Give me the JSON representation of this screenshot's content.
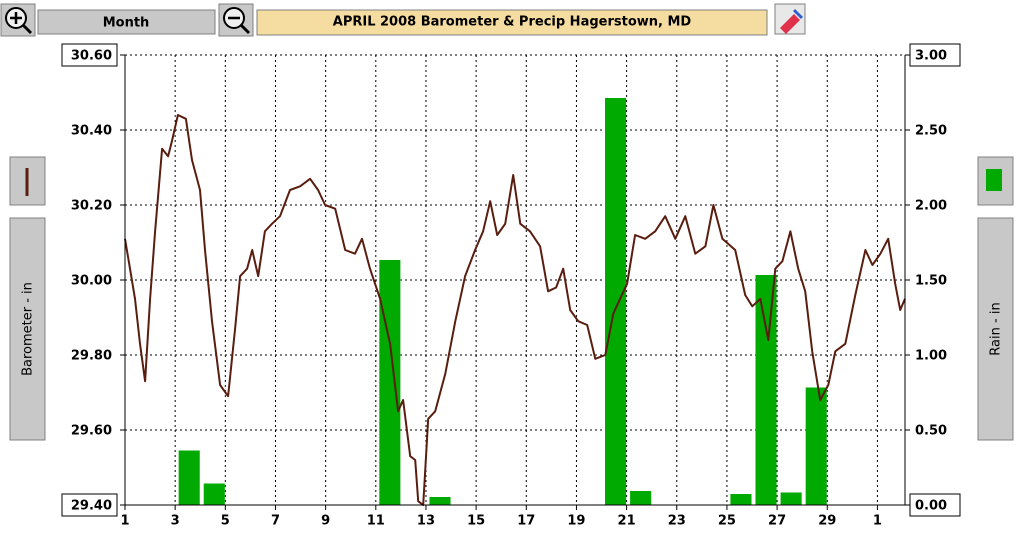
{
  "toolbar": {
    "view_button": "Month"
  },
  "chart_data": {
    "type": "combo",
    "title": "APRIL 2008    Barometer & Precip    Hagerstown, MD",
    "xlim": [
      1,
      32.1
    ],
    "xticks": [
      1,
      3,
      5,
      7,
      9,
      11,
      13,
      15,
      17,
      19,
      21,
      23,
      25,
      27,
      29,
      {
        "value": 31,
        "label": "1"
      }
    ],
    "ylim": [
      29.4,
      30.6
    ],
    "yticks": [
      {
        "value": 29.4,
        "label": "29.40"
      },
      {
        "value": 29.6,
        "label": "29.60"
      },
      {
        "value": 29.8,
        "label": "29.80"
      },
      {
        "value": 30,
        "label": "30.00"
      },
      {
        "value": 30.2,
        "label": "30.20"
      },
      {
        "value": 30.4,
        "label": "30.40"
      },
      {
        "value": 30.6,
        "label": "30.60"
      }
    ],
    "y2lim": [
      0,
      3
    ],
    "y2ticks": [
      {
        "value": 0,
        "label": "0.00"
      },
      {
        "value": 0.5,
        "label": "0.50"
      },
      {
        "value": 1,
        "label": "1.00"
      },
      {
        "value": 1.5,
        "label": "1.50"
      },
      {
        "value": 2,
        "label": "2.00"
      },
      {
        "value": 2.5,
        "label": "2.50"
      },
      {
        "value": 3,
        "label": "3.00"
      }
    ],
    "grid": true,
    "series": [
      {
        "name": "Barometer - in",
        "type": "line",
        "color": "#5a1e10",
        "x": [
          1.0,
          1.2,
          1.4,
          1.6,
          1.8,
          2.0,
          2.2,
          2.48,
          2.72,
          2.87,
          3.11,
          3.43,
          3.67,
          3.99,
          4.19,
          4.47,
          4.79,
          5.11,
          5.39,
          5.59,
          5.87,
          6.07,
          6.31,
          6.58,
          6.86,
          7.18,
          7.58,
          7.98,
          8.38,
          8.7,
          8.98,
          9.38,
          9.78,
          10.17,
          10.45,
          10.77,
          11.17,
          11.57,
          11.89,
          12.09,
          12.37,
          12.57,
          12.69,
          12.89,
          13.09,
          13.37,
          13.77,
          14.17,
          14.56,
          14.96,
          15.28,
          15.56,
          15.84,
          16.16,
          16.48,
          16.76,
          17.15,
          17.55,
          17.87,
          18.19,
          18.47,
          18.75,
          19.07,
          19.43,
          19.75,
          20.15,
          20.47,
          20.74,
          21.02,
          21.34,
          21.74,
          22.14,
          22.54,
          22.94,
          23.34,
          23.74,
          24.14,
          24.46,
          24.82,
          25.33,
          25.73,
          26.01,
          26.33,
          26.65,
          26.93,
          27.21,
          27.53,
          27.84,
          28.12,
          28.4,
          28.72,
          29.04,
          29.32,
          29.72,
          30.12,
          30.52,
          30.8,
          31.12,
          31.43,
          31.71,
          31.91,
          32.1
        ],
        "values": [
          30.11,
          30.03,
          29.95,
          29.83,
          29.73,
          29.95,
          30.13,
          30.35,
          30.33,
          30.37,
          30.44,
          30.43,
          30.32,
          30.24,
          30.08,
          29.89,
          29.72,
          29.69,
          29.87,
          30.01,
          30.03,
          30.08,
          30.01,
          30.13,
          30.15,
          30.17,
          30.24,
          30.25,
          30.27,
          30.24,
          30.2,
          30.19,
          30.08,
          30.07,
          30.11,
          30.03,
          29.95,
          29.83,
          29.65,
          29.68,
          29.53,
          29.52,
          29.41,
          29.4,
          29.63,
          29.65,
          29.75,
          29.89,
          30.01,
          30.08,
          30.13,
          30.21,
          30.12,
          30.15,
          30.28,
          30.15,
          30.13,
          30.09,
          29.97,
          29.98,
          30.03,
          29.92,
          29.89,
          29.88,
          29.79,
          29.8,
          29.91,
          29.95,
          29.99,
          30.12,
          30.11,
          30.13,
          30.17,
          30.11,
          30.17,
          30.07,
          30.09,
          30.2,
          30.11,
          30.08,
          29.96,
          29.93,
          29.95,
          29.84,
          30.03,
          30.05,
          30.13,
          30.03,
          29.97,
          29.81,
          29.68,
          29.72,
          29.81,
          29.83,
          29.96,
          30.08,
          30.04,
          30.07,
          30.11,
          29.99,
          29.92,
          29.95
        ]
      },
      {
        "name": "Rain - in",
        "type": "bar",
        "axis": "y2",
        "color": "#00aa00",
        "x": [
          1,
          2,
          3,
          4,
          5,
          6,
          7,
          8,
          9,
          10,
          11,
          12,
          13,
          14,
          15,
          16,
          17,
          18,
          19,
          20,
          21,
          22,
          23,
          24,
          25,
          26,
          27,
          28,
          29,
          30
        ],
        "values": [
          0,
          0,
          0.36,
          0.14,
          0,
          0,
          0,
          0,
          0,
          0,
          1.63,
          0,
          0.05,
          0,
          0,
          0,
          0,
          0,
          0,
          2.71,
          0.09,
          0,
          0,
          0,
          0.07,
          1.53,
          0.08,
          0.78,
          0,
          0
        ]
      }
    ]
  }
}
